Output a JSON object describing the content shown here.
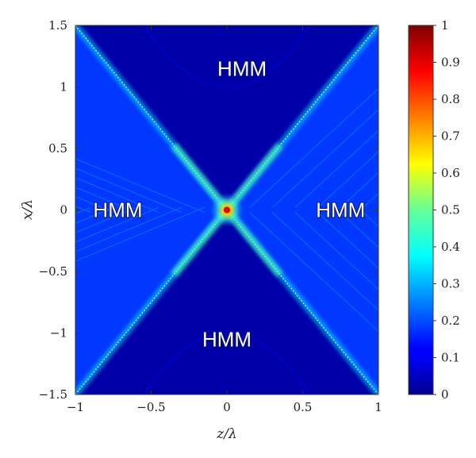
{
  "chart_data": {
    "type": "heatmap",
    "title": "",
    "xlabel": "z/λ",
    "ylabel": "x/λ",
    "xlim": [
      -1,
      1
    ],
    "ylim": [
      -1.5,
      1.5
    ],
    "x_ticks": [
      "−1",
      "−0.5",
      "0",
      "0.5",
      "1"
    ],
    "x_tick_values": [
      -1,
      -0.5,
      0,
      0.5,
      1
    ],
    "y_ticks": [
      "−1.5",
      "−1",
      "−0.5",
      "0",
      "0.5",
      "1",
      "1.5"
    ],
    "y_tick_values": [
      -1.5,
      -1,
      -0.5,
      0,
      0.5,
      1,
      1.5
    ],
    "colorbar": {
      "range": [
        0,
        1
      ],
      "ticks": [
        "0",
        "0.1",
        "0.2",
        "0.3",
        "0.4",
        "0.5",
        "0.6",
        "0.7",
        "0.8",
        "0.9",
        "1"
      ],
      "tick_values": [
        0,
        0.1,
        0.2,
        0.3,
        0.4,
        0.5,
        0.6,
        0.7,
        0.8,
        0.9,
        1
      ],
      "colormap": "jet"
    },
    "regions": [
      {
        "label": "HMM",
        "x": 0.1,
        "y": 1.15
      },
      {
        "label": "HMM",
        "x": -0.72,
        "y": 0.0
      },
      {
        "label": "HMM",
        "x": 0.75,
        "y": 0.0
      },
      {
        "label": "HMM",
        "x": 0.0,
        "y": -1.05
      }
    ],
    "features": {
      "cone_slope": 1.5,
      "peak": {
        "z": 0,
        "x": 0,
        "value": 0.9
      },
      "inside_cone_level": 0.18,
      "outside_cone_level": 0.04,
      "edge_level": 0.35
    }
  }
}
